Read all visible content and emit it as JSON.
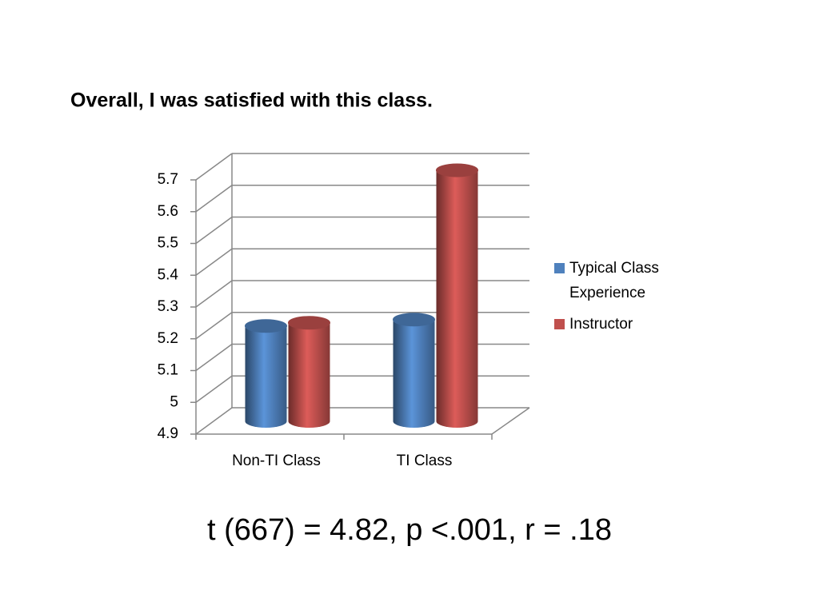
{
  "chart_data": {
    "type": "bar3d",
    "title": "Overall, I was satisfied with this class.",
    "categories": [
      "Non-TI Class",
      "TI Class"
    ],
    "series": [
      {
        "name": "Typical Class Experience",
        "color": "#4f81bd",
        "values": [
          5.2,
          5.22
        ]
      },
      {
        "name": "Instructor",
        "color": "#c0504d",
        "values": [
          5.21,
          5.69
        ]
      }
    ],
    "ylim": [
      4.9,
      5.7
    ],
    "yticks": [
      4.9,
      5,
      5.1,
      5.2,
      5.3,
      5.4,
      5.5,
      5.6,
      5.7
    ],
    "grid": true,
    "legend": "right",
    "annotation": "t (667) = 4.82, p <.001, r = .18"
  }
}
